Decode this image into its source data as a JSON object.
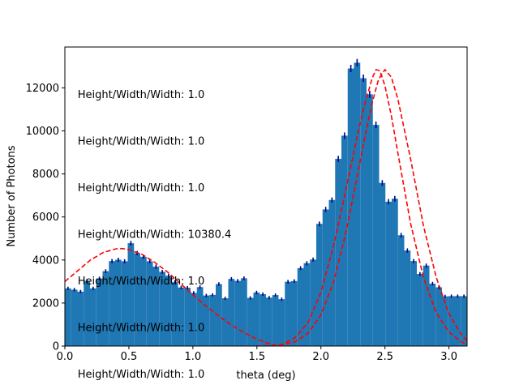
{
  "chart_data": {
    "type": "bar",
    "xlabel": "theta (deg)",
    "ylabel": "Number of Photons",
    "xlim": [
      0.0,
      3.1416
    ],
    "ylim": [
      0,
      13900
    ],
    "xticks": [
      "0.0",
      "0.5",
      "1.0",
      "1.5",
      "2.0",
      "2.5",
      "3.0"
    ],
    "yticks": [
      "0",
      "2000",
      "4000",
      "6000",
      "8000",
      "10000",
      "12000"
    ],
    "bar_color": "#1f77b4",
    "errorbar_color": "#00008b",
    "fit_color": "#ff0000",
    "bin_width": 0.0491,
    "histogram": {
      "bin_left_edges": [
        0.0,
        0.0491,
        0.0982,
        0.1473,
        0.1963,
        0.2454,
        0.2945,
        0.3436,
        0.3927,
        0.4418,
        0.4909,
        0.54,
        0.589,
        0.6381,
        0.6872,
        0.7363,
        0.7854,
        0.8345,
        0.8836,
        0.9327,
        0.9817,
        1.0308,
        1.0799,
        1.129,
        1.1781,
        1.2272,
        1.2763,
        1.3254,
        1.3744,
        1.4235,
        1.4726,
        1.5217,
        1.5708,
        1.6199,
        1.669,
        1.7181,
        1.7671,
        1.8162,
        1.8653,
        1.9144,
        1.9635,
        2.0126,
        2.0617,
        2.1108,
        2.1598,
        2.2089,
        2.258,
        2.3071,
        2.3562,
        2.4053,
        2.4544,
        2.5035,
        2.5525,
        2.6016,
        2.6507,
        2.6998,
        2.7489,
        2.798,
        2.8471,
        2.8962,
        2.9452,
        2.9943,
        3.0434,
        3.0925
      ],
      "counts": [
        2680,
        2620,
        2530,
        3030,
        2680,
        3140,
        3480,
        3950,
        4010,
        3940,
        4780,
        4320,
        4150,
        3940,
        3690,
        3450,
        3270,
        2970,
        2720,
        2710,
        2470,
        2740,
        2350,
        2380,
        2880,
        2220,
        3120,
        3030,
        3150,
        2240,
        2490,
        2410,
        2250,
        2370,
        2180,
        2990,
        3020,
        3620,
        3850,
        4020,
        5680,
        6350,
        6790,
        8700,
        9780,
        12900,
        13170,
        12450,
        11700,
        10280,
        7580,
        6710,
        6850,
        5150,
        4440,
        3950,
        3350,
        3740,
        2900,
        2730,
        2310,
        2320,
        2320,
        2320
      ],
      "errors": [
        80,
        80,
        80,
        85,
        80,
        85,
        90,
        95,
        95,
        95,
        105,
        100,
        100,
        95,
        95,
        90,
        90,
        85,
        80,
        80,
        80,
        80,
        75,
        75,
        85,
        75,
        85,
        85,
        85,
        75,
        80,
        80,
        75,
        75,
        75,
        85,
        85,
        90,
        95,
        95,
        110,
        120,
        120,
        140,
        150,
        170,
        175,
        170,
        165,
        155,
        130,
        125,
        125,
        110,
        100,
        95,
        90,
        95,
        85,
        80,
        75,
        75,
        75,
        75
      ]
    },
    "fit_curves": [
      {
        "style": "dashed",
        "x": [
          0.0,
          0.1,
          0.2,
          0.3,
          0.4,
          0.45,
          0.5,
          0.6,
          0.7,
          0.8,
          0.9,
          1.0,
          1.1,
          1.2,
          1.3,
          1.4,
          1.5,
          1.6,
          1.66,
          1.7,
          1.8,
          1.9,
          2.0,
          2.1,
          2.2,
          2.3,
          2.35,
          2.4,
          2.43,
          2.46,
          2.5,
          2.55,
          2.6,
          2.7,
          2.8,
          2.9,
          3.0,
          3.1,
          3.14
        ],
        "y": [
          3000,
          3500,
          4000,
          4350,
          4520,
          4530,
          4480,
          4270,
          3900,
          3450,
          2920,
          2380,
          1870,
          1400,
          980,
          620,
          320,
          100,
          0,
          70,
          400,
          1100,
          2500,
          4700,
          7400,
          10200,
          11400,
          12450,
          12850,
          12800,
          12100,
          10700,
          9000,
          5700,
          3200,
          1550,
          650,
          180,
          80
        ]
      },
      {
        "style": "dashed",
        "x": [
          1.5,
          1.6,
          1.7,
          1.8,
          1.9,
          2.0,
          2.1,
          2.2,
          2.3,
          2.35,
          2.4,
          2.45,
          2.5,
          2.55,
          2.6,
          2.7,
          2.8,
          2.9,
          3.0,
          3.1,
          3.14
        ],
        "y": [
          0,
          10,
          60,
          200,
          600,
          1450,
          3000,
          5400,
          8400,
          9900,
          11300,
          12400,
          12850,
          12500,
          11500,
          8700,
          5600,
          3200,
          1500,
          500,
          250
        ]
      }
    ],
    "annotations": [
      {
        "text": "Height/Width/Width: 1.0",
        "y": 11700
      },
      {
        "text": "Height/Width/Width: 1.0",
        "y": 9530
      },
      {
        "text": "Height/Width/Width: 1.0",
        "y": 7370
      },
      {
        "text": "Height/Width/Width: 10380.4",
        "y": 5200
      },
      {
        "text": "Height/Width/Width: 1.0",
        "y": 3030
      },
      {
        "text": "Height/Width/Width: 1.0",
        "y": 860
      },
      {
        "text": "Height/Width/Width: 1.0",
        "y": -1300
      }
    ]
  }
}
